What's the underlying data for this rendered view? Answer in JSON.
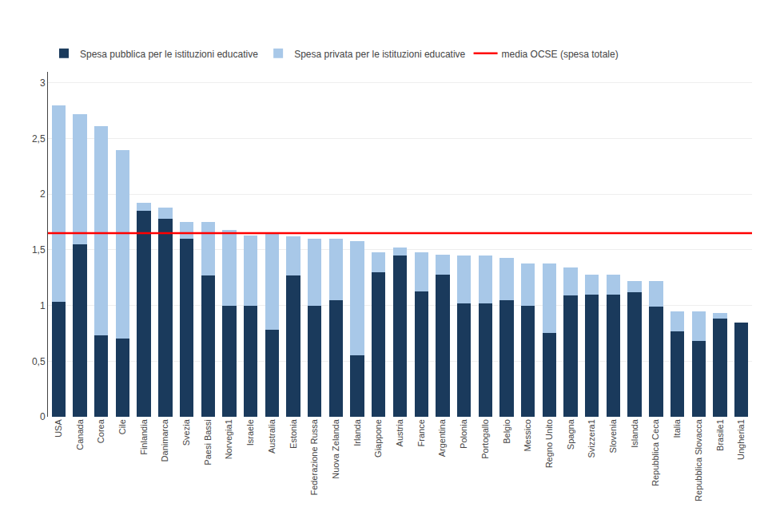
{
  "chart_data": {
    "type": "bar",
    "stacked": true,
    "categories": [
      "USA",
      "Canada",
      "Corea",
      "Cile",
      "Finlandia",
      "Danimarca",
      "Svezia",
      "Paesi Bassi",
      "Norvegia1",
      "Israele",
      "Australia",
      "Estonia",
      "Federazione Russa",
      "Nuova Zelanda",
      "Irlanda",
      "Giappone",
      "Austria",
      "France",
      "Argentina",
      "Polonia",
      "Portogallo",
      "Belgio",
      "Messico",
      "Regno Unito",
      "Spagna",
      "Svizzera1",
      "Slovenia",
      "Islanda",
      "Repubblica Ceca",
      "Italia",
      "Repubblica Slovacca",
      "Brasile1",
      "Ungheria1"
    ],
    "series": [
      {
        "name": "Spesa pubblica per le istituzioni educative",
        "color": "#1a3a5c",
        "values": [
          1.03,
          1.55,
          0.73,
          0.7,
          1.85,
          1.78,
          1.6,
          1.27,
          1.0,
          1.0,
          0.78,
          1.27,
          1.0,
          1.05,
          0.55,
          1.3,
          1.45,
          1.13,
          1.28,
          1.02,
          1.02,
          1.05,
          1.0,
          0.75,
          1.09,
          1.1,
          1.1,
          1.12,
          0.99,
          0.77,
          0.68,
          0.88,
          0.85
        ]
      },
      {
        "name": "Spesa privata per le istituzioni educative",
        "color": "#a8c8e8",
        "values": [
          1.77,
          1.17,
          1.88,
          1.7,
          0.07,
          0.1,
          0.15,
          0.48,
          0.68,
          0.63,
          0.87,
          0.35,
          0.6,
          0.55,
          1.03,
          0.18,
          0.07,
          0.35,
          0.18,
          0.43,
          0.43,
          0.38,
          0.38,
          0.63,
          0.25,
          0.18,
          0.18,
          0.1,
          0.23,
          0.18,
          0.27,
          0.05,
          0.0
        ]
      }
    ],
    "hline": {
      "name": "media OCSE (spesa totale)",
      "value": 1.65,
      "color": "#ff0000"
    },
    "ylim": [
      0,
      3.1
    ],
    "yticks": [
      0,
      {
        "value": 0.5,
        "label": "0,5"
      },
      1,
      {
        "value": 1.5,
        "label": "1,5"
      },
      2,
      {
        "value": 2.5,
        "label": "2,5"
      },
      3
    ],
    "grid": true,
    "legend": "top"
  }
}
